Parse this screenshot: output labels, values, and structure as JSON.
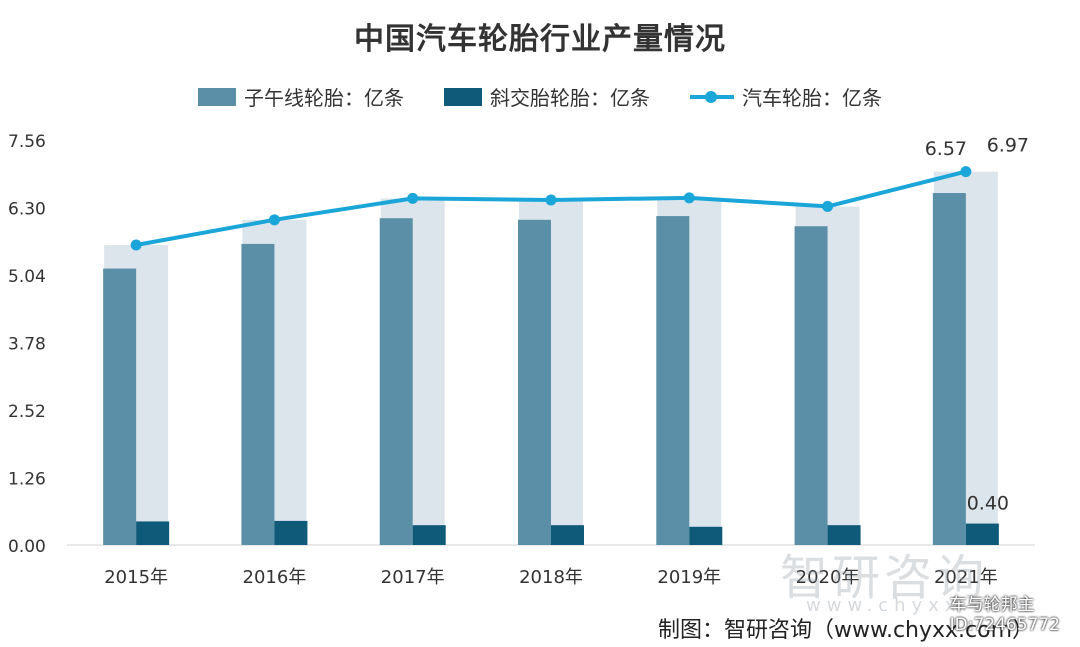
{
  "chart_data": {
    "type": "bar",
    "title": "中国汽车轮胎行业产量情况",
    "categories": [
      "2015年",
      "2016年",
      "2017年",
      "2018年",
      "2019年",
      "2020年",
      "2021年"
    ],
    "series": [
      {
        "name": "子午线轮胎：亿条",
        "kind": "bar",
        "color": "#5b8fa8",
        "values": [
          5.16,
          5.62,
          6.1,
          6.07,
          6.14,
          5.95,
          6.57
        ]
      },
      {
        "name": "斜交胎轮胎：亿条",
        "kind": "bar",
        "color": "#0f5a78",
        "values": [
          0.44,
          0.45,
          0.37,
          0.37,
          0.34,
          0.37,
          0.4
        ]
      },
      {
        "name": "汽车轮胎：亿条",
        "kind": "line",
        "color": "#1aa6d8",
        "values": [
          5.6,
          6.07,
          6.47,
          6.44,
          6.48,
          6.32,
          6.97
        ]
      }
    ],
    "background_series_color": "#dde5ec",
    "yticks": [
      "7.56",
      "6.30",
      "5.04",
      "3.78",
      "2.52",
      "1.26",
      "0.00"
    ],
    "ylim": [
      0,
      7.56
    ],
    "data_labels": [
      {
        "series": 0,
        "index": 6,
        "text": "6.57"
      },
      {
        "series": 2,
        "index": 6,
        "text": "6.97"
      },
      {
        "series": 1,
        "index": 6,
        "text": "0.40"
      }
    ],
    "legend_position": "top-center",
    "grid": false
  },
  "watermark": {
    "brand": "智研咨询",
    "url": "www.chyxx.com"
  },
  "source": "制图：智研咨询（www.chyxx.com）",
  "corner_mark": {
    "line1": "车与轮邦主",
    "line2": "ID:72465772"
  }
}
